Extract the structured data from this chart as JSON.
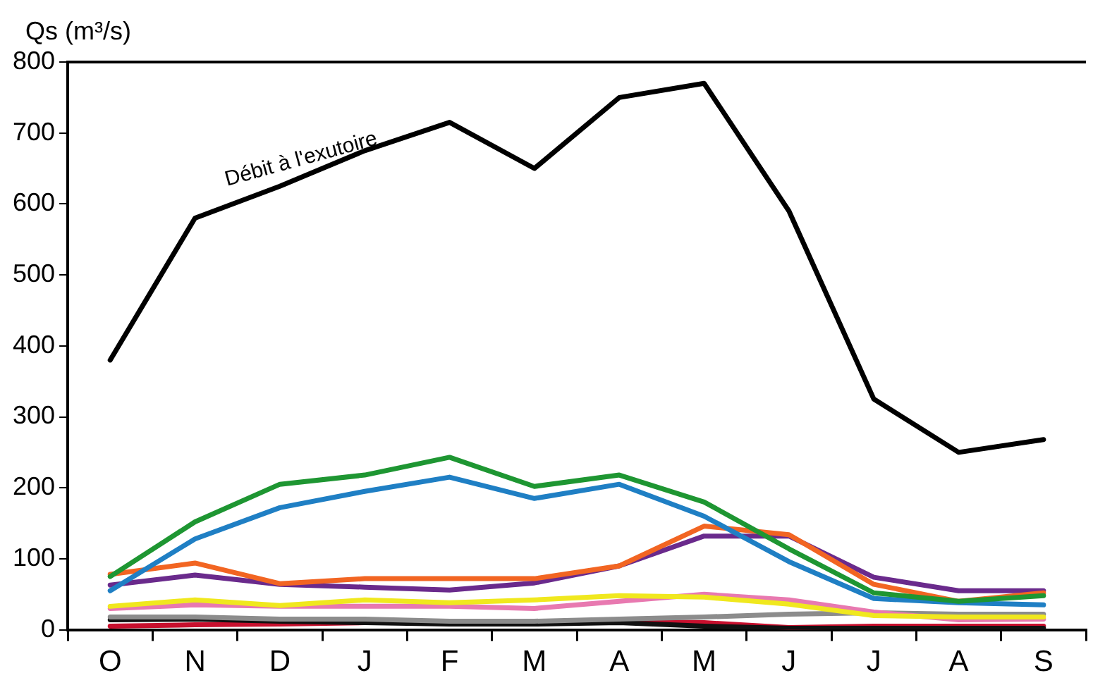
{
  "chart_data": {
    "type": "line",
    "ylabel": "Qs (m³/s)",
    "categories": [
      "O",
      "N",
      "D",
      "J",
      "F",
      "M",
      "A",
      "M",
      "J",
      "J",
      "A",
      "S"
    ],
    "series": [
      {
        "color": "#000000",
        "values": [
          380,
          580,
          625,
          675,
          715,
          650,
          750,
          770,
          590,
          325,
          250,
          268
        ]
      },
      {
        "color": "#1e9632",
        "values": [
          75,
          152,
          205,
          218,
          243,
          202,
          218,
          180,
          114,
          52,
          40,
          48
        ]
      },
      {
        "color": "#1f7fc4",
        "values": [
          55,
          128,
          172,
          195,
          215,
          185,
          205,
          160,
          96,
          44,
          38,
          35
        ]
      },
      {
        "color": "#f26522",
        "values": [
          78,
          94,
          65,
          72,
          72,
          72,
          90,
          146,
          134,
          64,
          40,
          52
        ]
      },
      {
        "color": "#6a2a8c",
        "values": [
          63,
          77,
          64,
          60,
          56,
          66,
          90,
          132,
          132,
          74,
          55,
          55
        ]
      },
      {
        "color": "#f0e81e",
        "values": [
          33,
          42,
          34,
          42,
          38,
          42,
          48,
          46,
          36,
          20,
          18,
          18
        ]
      },
      {
        "color": "#e879b0",
        "values": [
          30,
          35,
          33,
          33,
          33,
          30,
          40,
          50,
          42,
          25,
          14,
          15
        ]
      },
      {
        "color": "#8c8c8c",
        "values": [
          18,
          18,
          15,
          15,
          12,
          12,
          15,
          18,
          22,
          24,
          22,
          22
        ]
      },
      {
        "color": "#111111",
        "values": [
          14,
          15,
          12,
          10,
          8,
          8,
          10,
          5,
          2,
          2,
          2,
          2
        ]
      },
      {
        "color": "#c8102e",
        "values": [
          5,
          7,
          8,
          10,
          12,
          10,
          12,
          10,
          3,
          5,
          5,
          5
        ]
      }
    ],
    "ylim": [
      0,
      800
    ],
    "yticks": [
      0,
      100,
      200,
      300,
      400,
      500,
      600,
      700,
      800
    ],
    "grid": false,
    "legend": false,
    "marker": "none",
    "line_style": "solid",
    "annotations": [
      "Débit à l'exutoire"
    ]
  }
}
